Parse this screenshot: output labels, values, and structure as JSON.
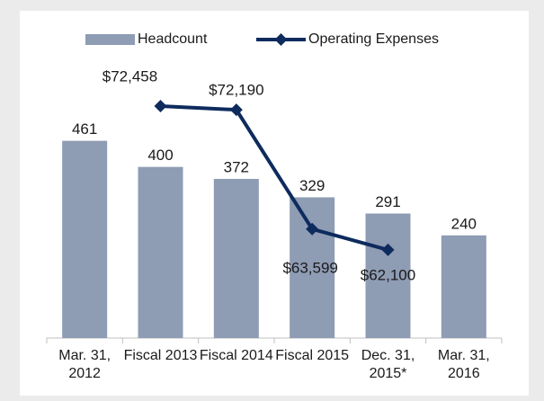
{
  "chart_data": {
    "type": "bar-line",
    "categories": [
      "Mar. 31, 2012",
      "Fiscal 2013",
      "Fiscal 2014",
      "Fiscal 2015",
      "Dec. 31, 2015*",
      "Mar. 31, 2016"
    ],
    "ylim": [
      0,
      580
    ],
    "y2lim": [
      55750,
      73620
    ],
    "legend": "top",
    "series": [
      {
        "name": "Headcount",
        "color": "#8e9cb4",
        "values": [
          461,
          400,
          372,
          329,
          291,
          240
        ]
      },
      {
        "name": "Operating Expenses",
        "color": "#0e2b5e",
        "axis": "y2",
        "values": [
          null,
          72458,
          72190,
          63599,
          62100,
          null
        ],
        "value_labels": [
          null,
          "$72,458",
          "$72,190",
          "$63,599",
          "$62,100",
          null
        ]
      }
    ]
  }
}
